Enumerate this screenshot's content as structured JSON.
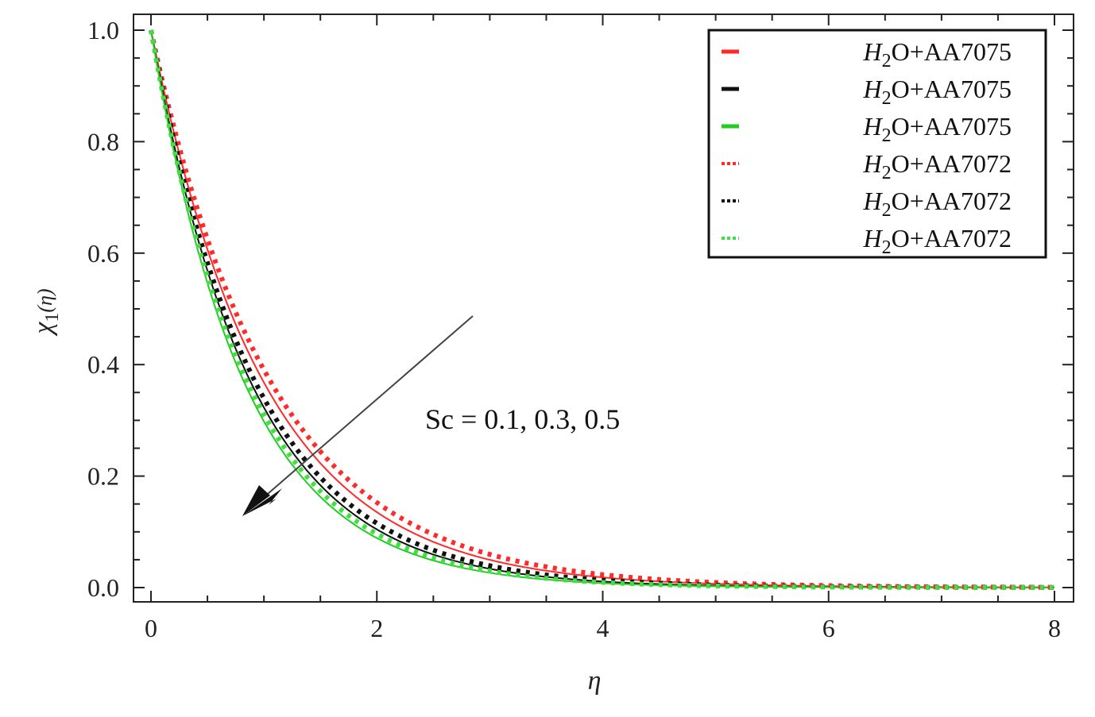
{
  "chart_data": {
    "type": "line",
    "xlabel": "η",
    "ylabel_main": "χ",
    "ylabel_sub": "1",
    "ylabel_arg": "(η)",
    "xlim": [
      0,
      8
    ],
    "ylim": [
      0,
      1
    ],
    "x_ticks": [
      "0",
      "2",
      "4",
      "6",
      "8"
    ],
    "y_ticks": [
      "0.0",
      "0.2",
      "0.4",
      "0.6",
      "0.8",
      "1.0"
    ],
    "legend_position": "top-right",
    "grid": false,
    "series": [
      {
        "name": "H2O+AA7075",
        "name_main": "H",
        "name_sub": "2",
        "name_rest": "O+AA7075",
        "color": "#ff2a2a",
        "style": "solid",
        "decay": 1.0
      },
      {
        "name": "H2O+AA7075",
        "name_main": "H",
        "name_sub": "2",
        "name_rest": "O+AA7075",
        "color": "#111111",
        "style": "solid",
        "decay": 1.13
      },
      {
        "name": "H2O+AA7075",
        "name_main": "H",
        "name_sub": "2",
        "name_rest": "O+AA7075",
        "color": "#22cc22",
        "style": "solid",
        "decay": 1.21
      },
      {
        "name": "H2O+AA7072",
        "name_main": "H",
        "name_sub": "2",
        "name_rest": "O+AA7072",
        "color": "#ff2a2a",
        "style": "dotted",
        "decay": 0.94
      },
      {
        "name": "H2O+AA7072",
        "name_main": "H",
        "name_sub": "2",
        "name_rest": "O+AA7072",
        "color": "#111111",
        "style": "dotted",
        "decay": 1.08
      },
      {
        "name": "H2O+AA7072",
        "name_main": "H",
        "name_sub": "2",
        "name_rest": "O+AA7072",
        "color": "#44dd44",
        "style": "dotted",
        "decay": 1.17
      }
    ],
    "annotation": "Sc = 0.1, 0.3, 0.5"
  }
}
